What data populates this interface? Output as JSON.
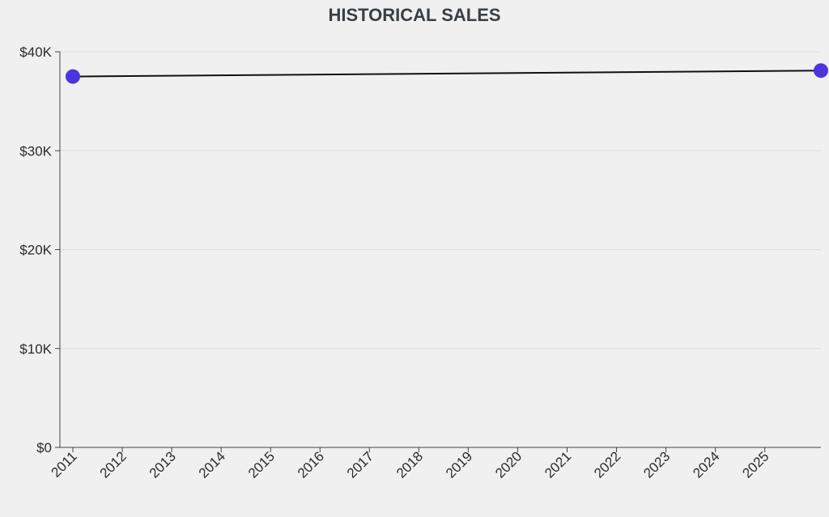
{
  "chart_data": {
    "type": "line",
    "title": "HISTORICAL SALES",
    "xlabel": "",
    "ylabel": "",
    "x_ticks": [
      "2011",
      "2012",
      "2013",
      "2014",
      "2015",
      "2016",
      "2017",
      "2018",
      "2019",
      "2020",
      "2021",
      "2022",
      "2023",
      "2024",
      "2025"
    ],
    "y_ticks": [
      "$0",
      "$10K",
      "$20K",
      "$30K",
      "$40K"
    ],
    "ylim": [
      0,
      40000
    ],
    "xlim": [
      2011,
      2026.4
    ],
    "series": [
      {
        "x": [
          2011,
          2026.4
        ],
        "values": [
          37500,
          38100
        ]
      }
    ],
    "grid": true,
    "legend": "none",
    "colors": {
      "line": "#111111",
      "marker": "#4b35db",
      "grid": "#dcdcdc",
      "axis": "#444444",
      "background": "#f0f0f0"
    }
  }
}
